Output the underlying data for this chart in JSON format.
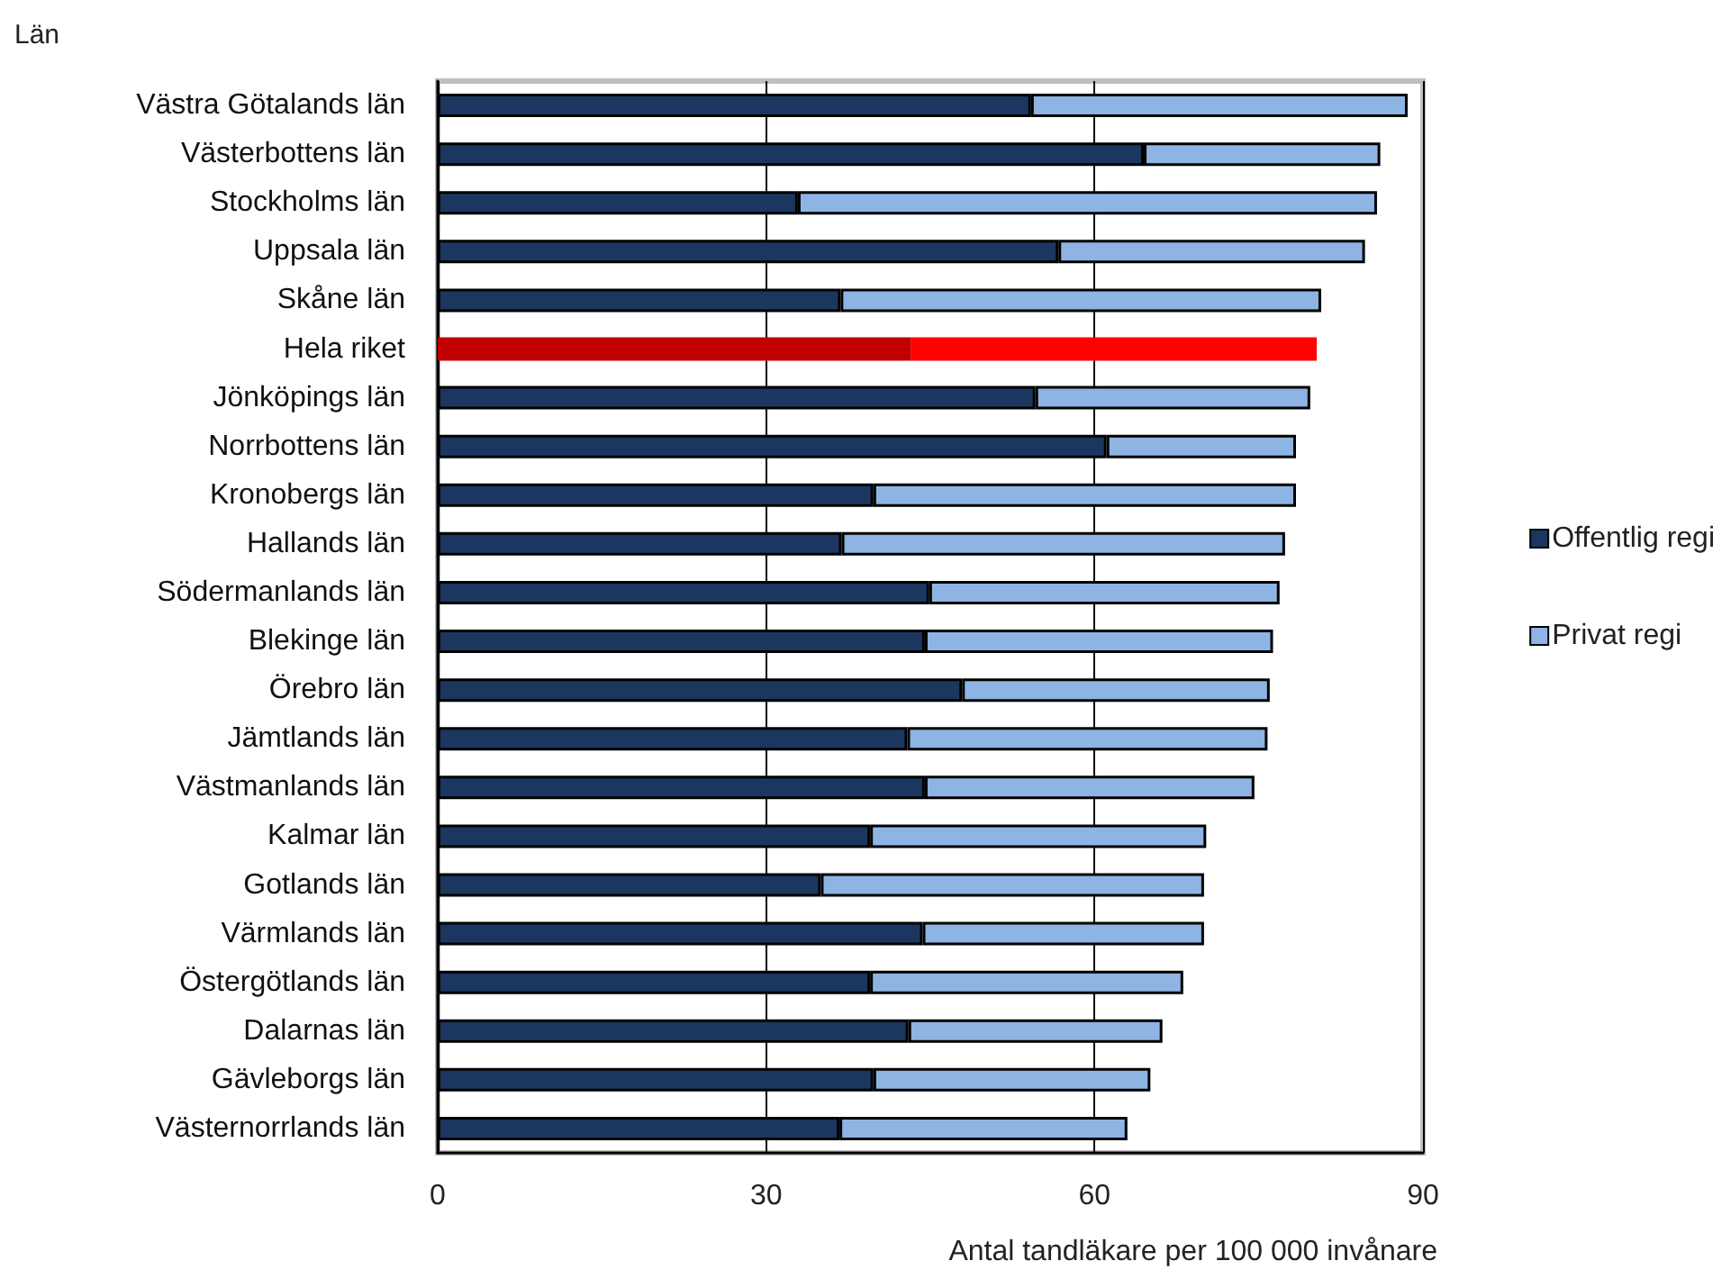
{
  "chart_data": {
    "type": "bar",
    "orientation": "horizontal",
    "stacked": true,
    "ylabel": "Län",
    "xlabel": "Antal tandläkare per 100 000 invånare",
    "categories": [
      "Västra Götalands län",
      "Västerbottens län",
      "Stockholms län",
      "Uppsala län",
      "Skåne län",
      "Hela riket",
      "Jönköpings län",
      "Norrbottens län",
      "Kronobergs län",
      "Hallands län",
      "Södermanlands län",
      "Blekinge län",
      "Örebro län",
      "Jämtlands län",
      "Västmanlands län",
      "Kalmar län",
      "Gotlands län",
      "Värmlands län",
      "Östergötlands län",
      "Dalarnas län",
      "Gävleborgs län",
      "Västernorrlands län"
    ],
    "series": [
      {
        "name": "Offentlig regi",
        "color": "#1b375f",
        "colors": [
          "#1b375f",
          "#1b375f",
          "#1b375f",
          "#1b375f",
          "#1b375f",
          "#c00000",
          "#1b375f",
          "#1b375f",
          "#1b375f",
          "#1b375f",
          "#1b375f",
          "#1b375f",
          "#1b375f",
          "#1b375f",
          "#1b375f",
          "#1b375f",
          "#1b375f",
          "#1b375f",
          "#1b375f",
          "#1b375f",
          "#1b375f",
          "#1b375f"
        ],
        "values": [
          54.2,
          64.5,
          32.9,
          56.7,
          36.8,
          43.2,
          54.6,
          61.1,
          39.8,
          36.9,
          44.9,
          44.5,
          47.9,
          42.9,
          44.5,
          39.5,
          35.0,
          44.3,
          39.5,
          43.0,
          39.8,
          36.7
        ]
      },
      {
        "name": "Privat regi",
        "color": "#8db4e2",
        "colors": [
          "#8db4e2",
          "#8db4e2",
          "#8db4e2",
          "#8db4e2",
          "#8db4e2",
          "#ff0000",
          "#8db4e2",
          "#8db4e2",
          "#8db4e2",
          "#8db4e2",
          "#8db4e2",
          "#8db4e2",
          "#8db4e2",
          "#8db4e2",
          "#8db4e2",
          "#8db4e2",
          "#8db4e2",
          "#8db4e2",
          "#8db4e2",
          "#8db4e2",
          "#8db4e2",
          "#8db4e2"
        ],
        "values": [
          34.4,
          21.6,
          52.9,
          28.0,
          43.9,
          37.1,
          25.1,
          17.3,
          38.6,
          40.5,
          32.0,
          31.8,
          28.1,
          32.9,
          30.1,
          30.7,
          35.0,
          25.7,
          28.6,
          23.2,
          25.3,
          26.3
        ]
      }
    ],
    "xlim": [
      0,
      90
    ],
    "xticks": [
      0,
      30,
      60,
      90
    ],
    "grid": "x",
    "legend": "right"
  }
}
